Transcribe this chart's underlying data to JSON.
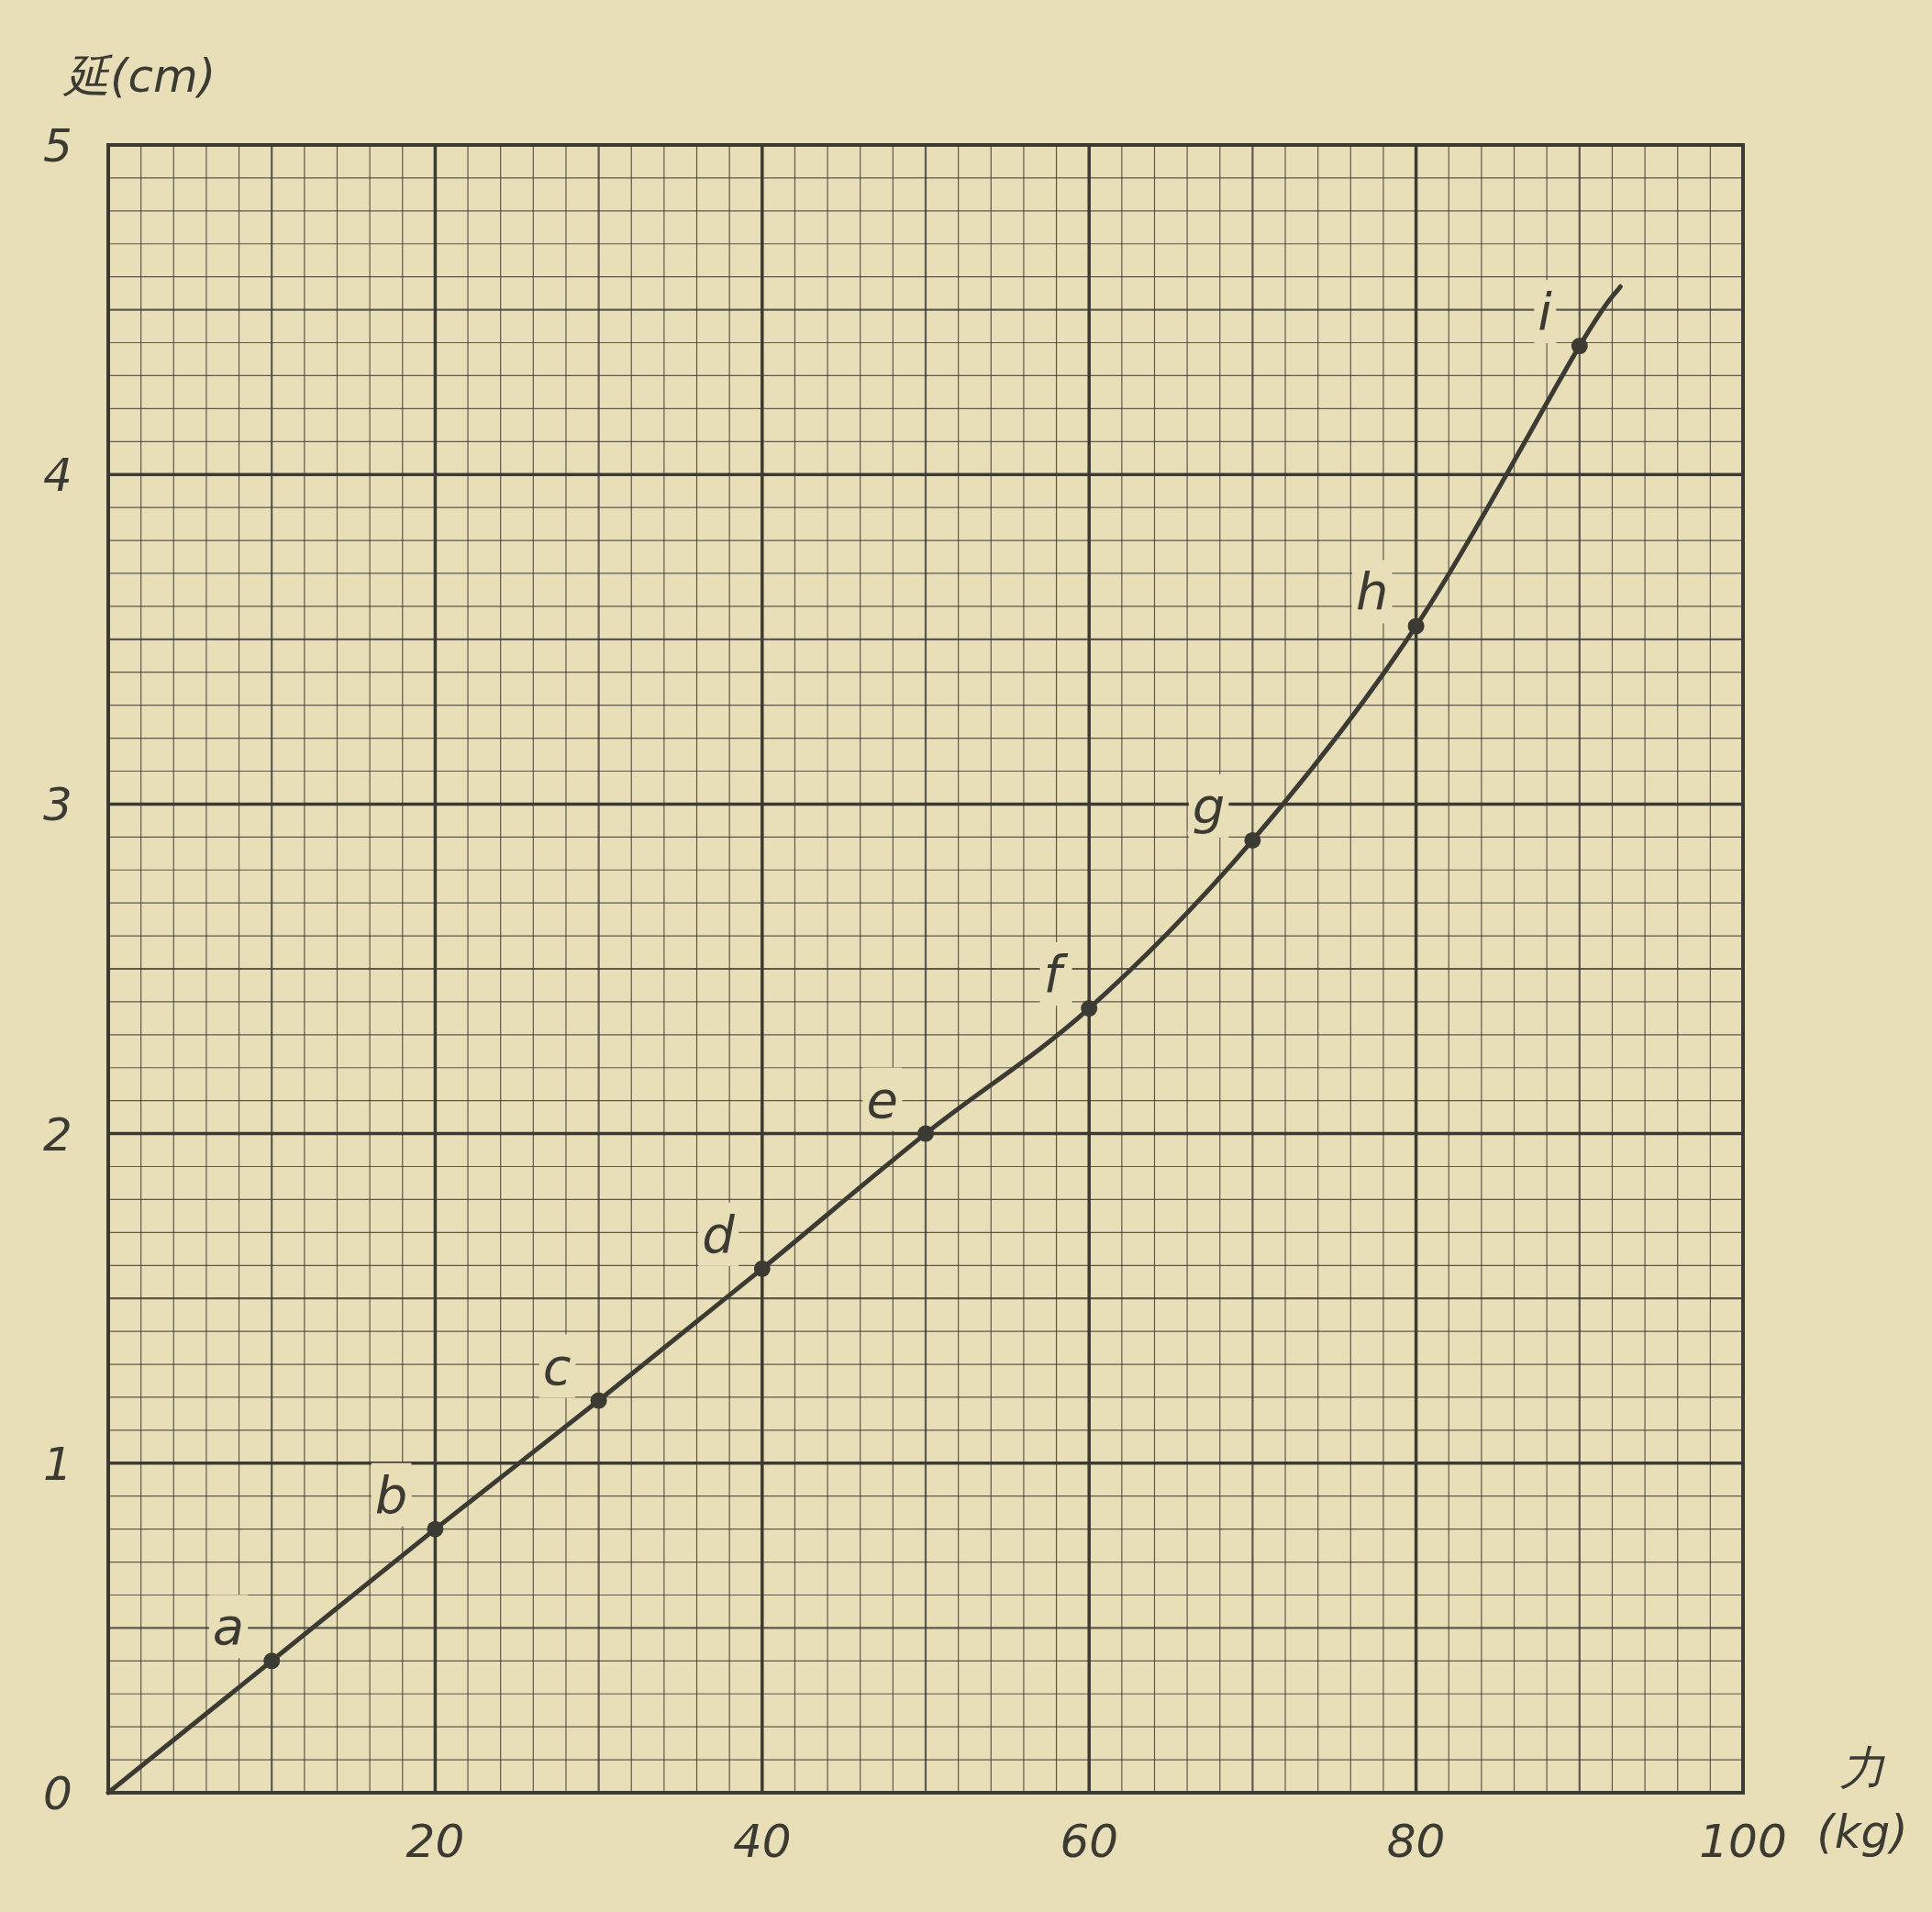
{
  "chart_data": {
    "type": "line",
    "xlabel": "力(kg)",
    "ylabel": "延(cm)",
    "xlim": [
      0,
      100
    ],
    "ylim": [
      0,
      5
    ],
    "xticks": [
      {
        "value": 0,
        "label": null
      },
      20,
      40,
      60,
      80,
      100
    ],
    "yticks": [
      0,
      1,
      2,
      3,
      4,
      5
    ],
    "grid": true,
    "series": [
      {
        "type": "line",
        "color": "#3b3a33",
        "marker": "none",
        "x": [
          0,
          10,
          20,
          30,
          40,
          50,
          60,
          70,
          80,
          90,
          92.5
        ],
        "values": [
          0,
          0.4,
          0.8,
          1.19,
          1.59,
          2.0,
          2.38,
          2.89,
          3.54,
          4.39,
          4.57
        ]
      },
      {
        "type": "scatter",
        "color": "#3b3a33",
        "marker": "circle",
        "x": [
          10,
          20,
          30,
          40,
          50,
          60,
          70,
          80,
          90
        ],
        "values": [
          0.4,
          0.8,
          1.19,
          1.59,
          2.0,
          2.38,
          2.89,
          3.54,
          4.39
        ]
      }
    ],
    "annotations": [
      {
        "text": "a",
        "x": 10,
        "y": 0.4
      },
      {
        "text": "b",
        "x": 20,
        "y": 0.8
      },
      {
        "text": "c",
        "x": 30,
        "y": 1.19
      },
      {
        "text": "d",
        "x": 40,
        "y": 1.59
      },
      {
        "text": "e",
        "x": 50,
        "y": 2.0
      },
      {
        "text": "f",
        "x": 60,
        "y": 2.38
      },
      {
        "text": "g",
        "x": 70,
        "y": 2.89
      },
      {
        "text": "h",
        "x": 80,
        "y": 3.54
      },
      {
        "text": "i",
        "x": 90,
        "y": 4.39
      }
    ]
  }
}
